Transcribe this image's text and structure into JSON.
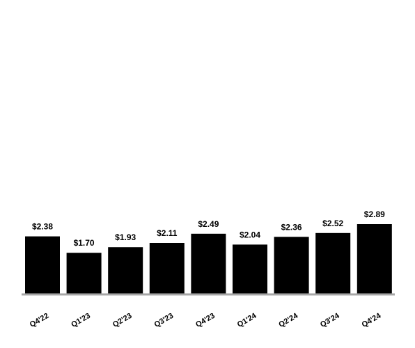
{
  "chart_data": {
    "type": "bar",
    "title": "",
    "xlabel": "",
    "ylabel": "",
    "categories": [
      "Q4'22",
      "Q1'23",
      "Q2'23",
      "Q3'23",
      "Q4'23",
      "Q1'24",
      "Q2'24",
      "Q3'24",
      "Q4'24"
    ],
    "values": [
      2.38,
      1.7,
      1.93,
      2.11,
      2.49,
      2.04,
      2.36,
      2.52,
      2.89
    ],
    "value_labels": [
      "$2.38",
      "$1.70",
      "$1.93",
      "$2.11",
      "$2.49",
      "$2.04",
      "$2.36",
      "$2.52",
      "$2.89"
    ],
    "ylim": [
      0,
      2.89
    ],
    "grid": false,
    "legend": "none",
    "bar_color": "#000000",
    "axis_color": "#a6a6a6",
    "label_color": "#000000"
  }
}
